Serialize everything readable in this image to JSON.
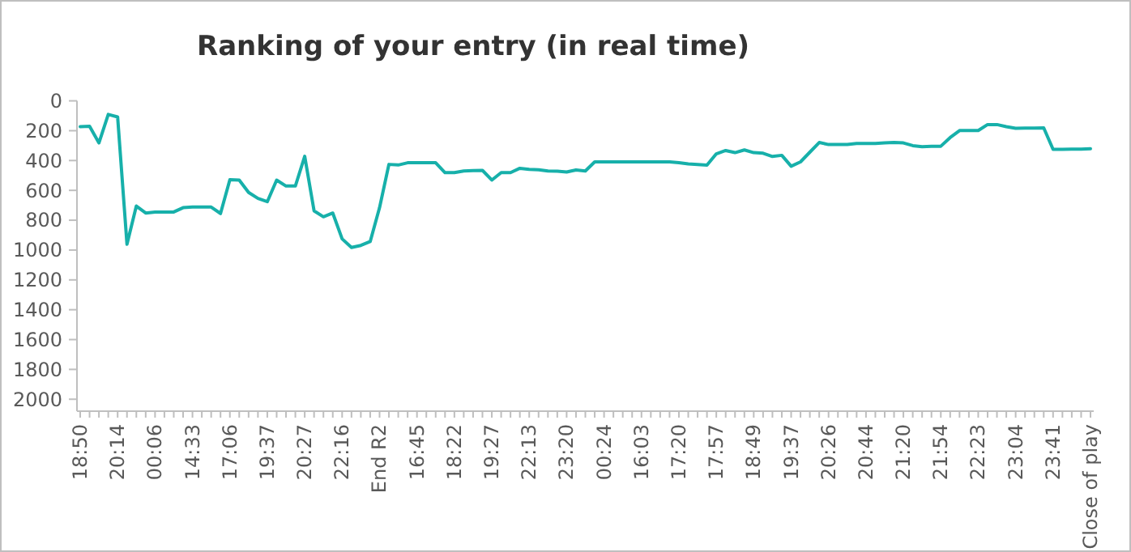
{
  "chart_data": {
    "type": "line",
    "title": "Ranking of your entry (in real time)",
    "categories": [
      "18:50",
      null,
      null,
      null,
      "20:14",
      null,
      null,
      null,
      "00:06",
      null,
      null,
      null,
      "14:33",
      null,
      null,
      null,
      "17:06",
      null,
      null,
      null,
      "19:37",
      null,
      null,
      null,
      "20:27",
      null,
      null,
      null,
      "22:16",
      null,
      null,
      null,
      "End R2",
      null,
      null,
      null,
      "16:45",
      null,
      null,
      null,
      "18:22",
      null,
      null,
      null,
      "19:27",
      null,
      null,
      null,
      "22:13",
      null,
      null,
      null,
      "23:20",
      null,
      null,
      null,
      "00:24",
      null,
      null,
      null,
      "16:03",
      null,
      null,
      null,
      "17:20",
      null,
      null,
      null,
      "17:57",
      null,
      null,
      null,
      "18:49",
      null,
      null,
      null,
      "19:37",
      null,
      null,
      null,
      "20:26",
      null,
      null,
      null,
      "20:44",
      null,
      null,
      null,
      "21:20",
      null,
      null,
      null,
      "21:54",
      null,
      null,
      null,
      "22:23",
      null,
      null,
      null,
      "23:04",
      null,
      null,
      null,
      "23:41",
      null,
      null,
      null,
      "Close of play"
    ],
    "series": [
      {
        "color": "#17b0aa",
        "values": [
          173,
          170,
          282,
          91,
          108,
          961,
          705,
          752,
          745,
          745,
          745,
          716,
          712,
          712,
          712,
          755,
          528,
          531,
          614,
          654,
          676,
          531,
          571,
          571,
          372,
          737,
          777,
          752,
          925,
          983,
          969,
          943,
          716,
          426,
          430,
          415,
          415,
          415,
          415,
          481,
          481,
          470,
          468,
          466,
          531,
          481,
          481,
          452,
          459,
          462,
          470,
          472,
          477,
          463,
          470,
          409,
          409,
          409,
          409,
          409,
          409,
          409,
          409,
          409,
          415,
          423,
          427,
          431,
          355,
          333,
          347,
          329,
          347,
          351,
          373,
          365,
          438,
          409,
          344,
          279,
          293,
          293,
          293,
          286,
          286,
          286,
          282,
          279,
          282,
          300,
          307,
          305,
          304,
          246,
          199,
          199,
          199,
          159,
          159,
          173,
          184,
          183,
          182,
          181,
          325,
          325,
          324,
          323,
          321
        ]
      }
    ],
    "ylim": [
      2080,
      0
    ],
    "yticks": [
      0,
      200,
      400,
      600,
      800,
      1000,
      1200,
      1400,
      1600,
      1800,
      2000
    ]
  }
}
